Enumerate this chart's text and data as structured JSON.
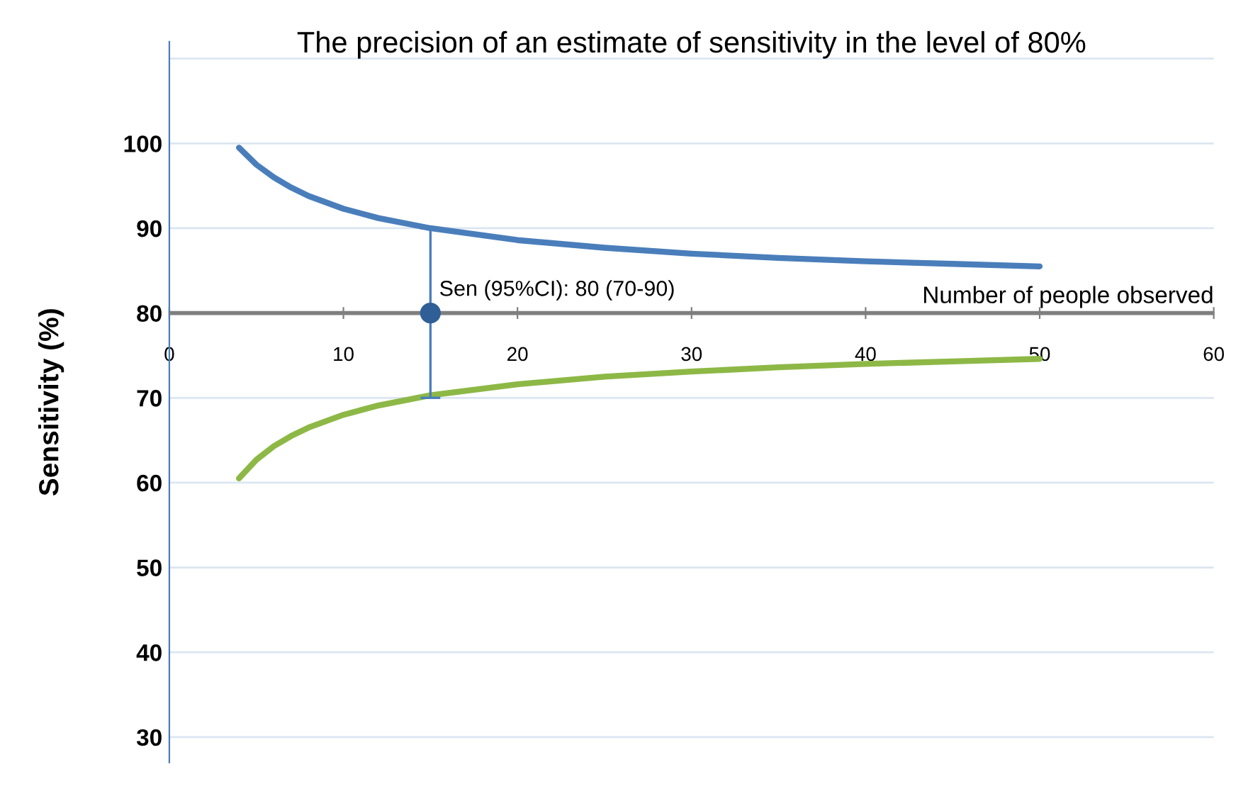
{
  "chart_data": {
    "type": "line",
    "title": "The precision of an estimate of sensitivity in the level of 80%",
    "xlabel": "Number of people observed",
    "ylabel": "Sensitivity (%)",
    "annotations": [
      {
        "text": "Sen (95%CI): 80 (70-90)",
        "x": 15,
        "y": 80
      }
    ],
    "series": [
      {
        "color": "#4a7ebb",
        "x": [
          4,
          5,
          6,
          7,
          8,
          10,
          12,
          15,
          20,
          25,
          30,
          35,
          40,
          45,
          50
        ],
        "values": [
          99.5,
          97.5,
          96,
          94.8,
          93.8,
          92.3,
          91.2,
          90,
          88.6,
          87.7,
          87,
          86.5,
          86.1,
          85.8,
          85.5
        ]
      },
      {
        "color": "#8db846",
        "x": [
          4,
          5,
          6,
          7,
          8,
          10,
          12,
          15,
          20,
          25,
          30,
          35,
          40,
          45,
          50
        ],
        "values": [
          60.5,
          62.7,
          64.3,
          65.5,
          66.5,
          68,
          69.1,
          70.3,
          71.6,
          72.5,
          73.1,
          73.6,
          74,
          74.3,
          74.6
        ]
      },
      {
        "type": "scatter",
        "color": "#2f5f96",
        "x": [
          15
        ],
        "values": [
          80
        ],
        "errors": [
          [
            70,
            90
          ]
        ],
        "marker": "circle"
      }
    ],
    "ref_lines": [
      {
        "axis": "y",
        "value": 80,
        "label": null,
        "color": "#7f7f7f"
      }
    ],
    "xlim": [
      0,
      60
    ],
    "xticks": [
      0,
      10,
      20,
      30,
      40,
      50,
      60
    ],
    "ylim": [
      27,
      112
    ],
    "yticks": [
      30,
      40,
      50,
      60,
      70,
      80,
      90,
      100,
      {
        "value": 110,
        "label": null
      }
    ],
    "grid": "y"
  }
}
